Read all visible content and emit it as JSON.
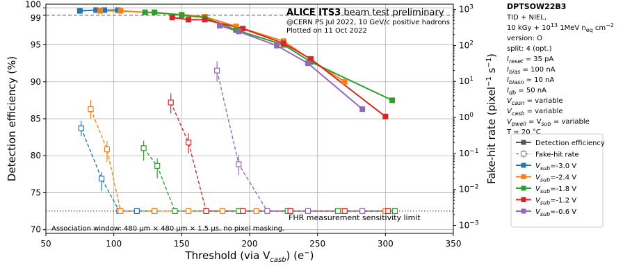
{
  "chart_data": {
    "type": "line",
    "title": "ALICE ITS3 beam test preliminary",
    "title_bold": "ALICE ITS3",
    "title_rest": "beam test preliminary",
    "subtitle_lines": [
      "@CERN PS Jul 2022, 10 GeV/c positive hadrons",
      "Plotted on 11 Oct 2022"
    ],
    "xlabel": "Threshold (via V_casb) (e⁻)",
    "xlabel_parts": {
      "pre": "Threshold (via V",
      "sub": "casb",
      "post": ") (e",
      "sup": "−",
      "end": ")"
    },
    "ylabel": "Detection efficiency (%)",
    "y2label": "Fake-hit rate (pixel⁻¹ s⁻¹)",
    "y2label_parts": {
      "pre": "Fake-hit rate (pixel",
      "sup1": "−1",
      "mid": " s",
      "sup2": "−1",
      "end": ")"
    },
    "xlim": [
      50,
      350
    ],
    "ylim": [
      69.5,
      100.5
    ],
    "y2lim": [
      0.0006,
      1400
    ],
    "y2scale": "log",
    "grid": true,
    "xticks": [
      50,
      100,
      150,
      200,
      250,
      300,
      350
    ],
    "yticks": [
      70,
      75,
      80,
      85,
      90,
      95,
      99,
      100
    ],
    "y2ticks": [
      {
        "value": 0.001,
        "label": "10",
        "exp": "−3"
      },
      {
        "value": 0.01,
        "label": "10",
        "exp": "−2"
      },
      {
        "value": 0.1,
        "label": "10",
        "exp": "−1"
      },
      {
        "value": 1,
        "label": "10",
        "exp": "0"
      },
      {
        "value": 10,
        "label": "10",
        "exp": "1"
      },
      {
        "value": 100,
        "label": "10",
        "exp": "2"
      },
      {
        "value": 1000,
        "label": "10",
        "exp": "3"
      }
    ],
    "reference_line_99": 99,
    "fhr_sensitivity_limit": 0.0025,
    "fhr_limit_label": "FHR measurement sensitivity limit",
    "association_note": "Association window: 480 μm × 480 μm × 1.5 μs, no pixel masking.",
    "legend_position": "right",
    "legend": {
      "style_entries": [
        "Detection efficiency",
        "Fake-hit rate"
      ],
      "series_label_prefix": "V",
      "series_label_sub": "sub"
    },
    "series": [
      {
        "name": "V_sub=-3.0 V",
        "value_label": "=-3.0 V",
        "color": "#1f77b4",
        "efficiency": {
          "x": [
            75,
            87,
            93,
            103
          ],
          "y": [
            99.6,
            99.7,
            99.7,
            99.7
          ]
        },
        "fhr": {
          "x": [
            76,
            91,
            104,
            117,
            130
          ],
          "y": [
            0.5,
            0.02,
            0.0025,
            0.0025,
            0.0025
          ],
          "err_lo": [
            0.6,
            0.45,
            0.0
          ],
          "err_hi": [
            1.6,
            1.5,
            0.0
          ]
        }
      },
      {
        "name": "V_sub=-2.4 V",
        "value_label": "=-2.4 V",
        "color": "#ff7f0e",
        "efficiency": {
          "x": [
            90,
            105,
            150,
            167,
            190,
            225,
            245,
            270
          ],
          "y": [
            99.6,
            99.6,
            99.1,
            98.8,
            97.5,
            95.5,
            93.0,
            90.0
          ]
        },
        "fhr": {
          "x": [
            83,
            95,
            105,
            130,
            155,
            180,
            205,
            230,
            268,
            300
          ],
          "y": [
            1.7,
            0.13,
            0.0025,
            0.0025,
            0.0025,
            0.0025,
            0.0025,
            0.0025,
            0.0025,
            0.0025
          ],
          "err_lo": [
            0.55,
            0.45,
            0.0
          ],
          "err_hi": [
            1.8,
            1.7,
            0.0
          ]
        }
      },
      {
        "name": "V_sub=-1.8 V",
        "value_label": "=-1.8 V",
        "color": "#2ca02c",
        "efficiency": {
          "x": [
            123,
            130,
            150,
            167,
            190,
            225,
            245,
            305
          ],
          "y": [
            99.4,
            99.4,
            99.0,
            98.7,
            97.0,
            95.0,
            92.7,
            87.5
          ]
        },
        "fhr": {
          "x": [
            122,
            132,
            145,
            168,
            192,
            228,
            265,
            307
          ],
          "y": [
            0.14,
            0.045,
            0.0025,
            0.0025,
            0.0025,
            0.0025,
            0.0025,
            0.0025
          ],
          "err_lo": [
            0.45,
            0.45,
            0.0
          ],
          "err_hi": [
            1.6,
            1.6,
            0.0
          ]
        }
      },
      {
        "name": "V_sub=-1.2 V",
        "value_label": "=-1.2 V",
        "color": "#d62728",
        "efficiency": {
          "x": [
            143,
            155,
            167,
            195,
            225,
            245,
            300
          ],
          "y": [
            98.7,
            98.4,
            98.4,
            97.2,
            95.2,
            93.1,
            85.3
          ]
        },
        "fhr": {
          "x": [
            142,
            155,
            168,
            195,
            230,
            270,
            302
          ],
          "y": [
            2.6,
            0.2,
            0.0025,
            0.0025,
            0.0025,
            0.0025,
            0.0025
          ],
          "err_lo": [
            0.5,
            0.5,
            0.0
          ],
          "err_hi": [
            1.8,
            1.8,
            0.0
          ]
        }
      },
      {
        "name": "V_sub=-0.6 V",
        "value_label": "=-0.6 V",
        "color": "#9467bd",
        "efficiency": {
          "x": [
            178,
            192,
            220,
            243,
            283
          ],
          "y": [
            97.6,
            96.8,
            94.9,
            92.5,
            86.3
          ]
        },
        "fhr": {
          "x": [
            176,
            192,
            213,
            243,
            283
          ],
          "y": [
            20,
            0.05,
            0.0025,
            0.0025,
            0.0025
          ],
          "err_lo": [
            0.5,
            0.5,
            0.0
          ],
          "err_hi": [
            1.8,
            1.8,
            0.0
          ]
        }
      }
    ]
  },
  "side_info": {
    "chip": "DPTSOW22B3",
    "lines": [
      {
        "type": "plain",
        "text": "TID + NIEL,"
      },
      {
        "type": "fluence",
        "pre": "10 kGy + 10",
        "sup": "13",
        "mid": " 1MeV n",
        "sub": "eq",
        "post": " cm",
        "sup2": "−2"
      },
      {
        "type": "plain",
        "text": "version: O"
      },
      {
        "type": "plain",
        "text": "split:  4 (opt.)"
      },
      {
        "type": "param",
        "var": "I",
        "sub": "reset",
        "value": " = 35 pA"
      },
      {
        "type": "param",
        "var": "I",
        "sub": "bias",
        "value": " = 100 nA"
      },
      {
        "type": "param",
        "var": "I",
        "sub": "biasn",
        "value": " = 10 nA"
      },
      {
        "type": "param",
        "var": "I",
        "sub": "db",
        "value": " = 50 nA"
      },
      {
        "type": "param",
        "var": "V",
        "sub": "casn",
        "value": " = variable"
      },
      {
        "type": "param",
        "var": "V",
        "sub": "casb",
        "value": " = variable"
      },
      {
        "type": "param2",
        "var": "V",
        "sub": "pwell",
        "mid": " = V",
        "sub2": "sub",
        "value": " = variable"
      },
      {
        "type": "plain",
        "text": "T = 20 °C"
      }
    ]
  }
}
